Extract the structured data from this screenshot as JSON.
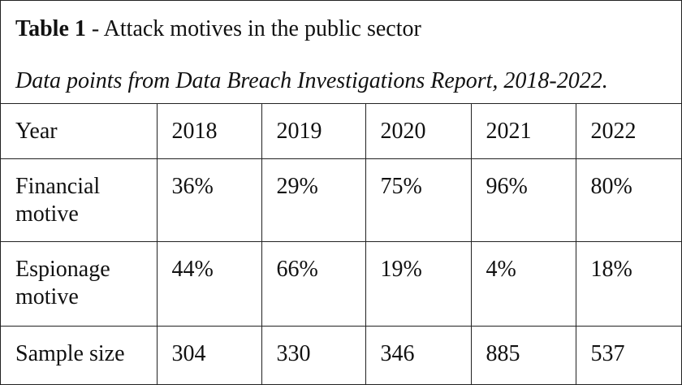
{
  "caption": {
    "label": "Table 1",
    "title": " - Attack motives in the public sector",
    "subtitle": "Data points from Data Breach Investigations Report, 2018-2022."
  },
  "table": {
    "header": {
      "label": "Year",
      "cells": [
        "2018",
        "2019",
        "2020",
        "2021",
        "2022"
      ]
    },
    "rows": [
      {
        "label_line1": "Financial",
        "label_line2": "motive",
        "cells": [
          "36%",
          "29%",
          "75%",
          "96%",
          "80%"
        ]
      },
      {
        "label_line1": "Espionage",
        "label_line2": "motive",
        "cells": [
          "44%",
          "66%",
          "19%",
          "4%",
          "18%"
        ]
      },
      {
        "label_line1": "Sample size",
        "cells": [
          "304",
          "330",
          "346",
          "885",
          "537"
        ]
      }
    ]
  }
}
